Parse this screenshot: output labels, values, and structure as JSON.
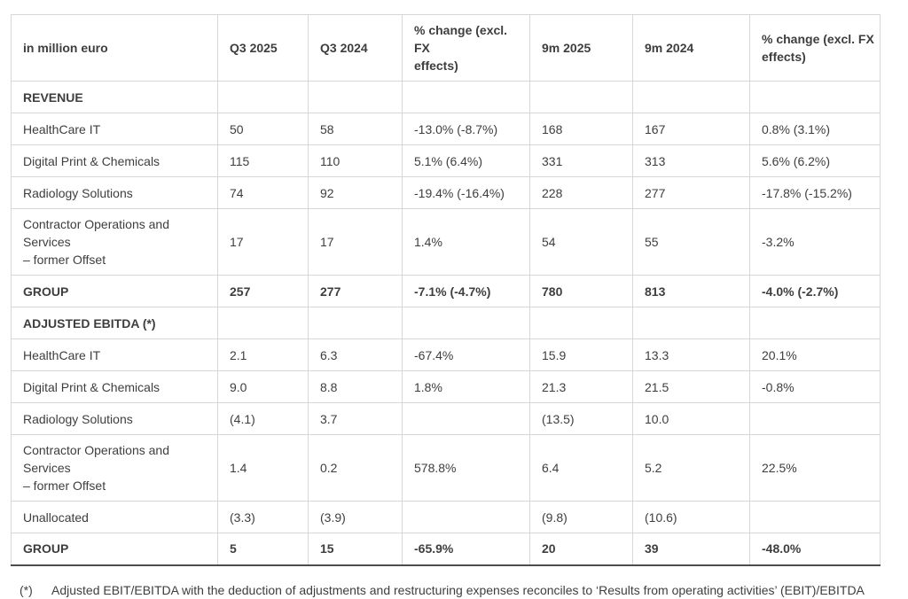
{
  "colors": {
    "text": "#3e3e3e",
    "grid_border": "#d7d7d7",
    "table_bottom_border": "#4c4c4c",
    "background": "#ffffff"
  },
  "table": {
    "columns": [
      "in million euro",
      "Q3 2025",
      "Q3 2024",
      "% change (excl. FX\neffects)",
      "9m 2025",
      "9m 2024",
      "% change (excl. FX\neffects)"
    ],
    "rows": [
      {
        "type": "section",
        "label": "REVENUE",
        "values": [
          "",
          "",
          "",
          "",
          "",
          ""
        ]
      },
      {
        "type": "data",
        "label": "HealthCare IT",
        "values": [
          "50",
          "58",
          "-13.0% (-8.7%)",
          "168",
          "167",
          "0.8% (3.1%)"
        ]
      },
      {
        "type": "data",
        "label": "Digital Print & Chemicals",
        "values": [
          "115",
          "110",
          "5.1% (6.4%)",
          "331",
          "313",
          "5.6% (6.2%)"
        ]
      },
      {
        "type": "data",
        "label": "Radiology Solutions",
        "values": [
          "74",
          "92",
          "-19.4% (-16.4%)",
          "228",
          "277",
          "-17.8% (-15.2%)"
        ]
      },
      {
        "type": "data",
        "label": "Contractor Operations and Services\n– former Offset",
        "values": [
          "17",
          "17",
          "1.4%",
          "54",
          "55",
          "-3.2%"
        ]
      },
      {
        "type": "total",
        "label": "GROUP",
        "values": [
          "257",
          "277",
          "-7.1% (-4.7%)",
          "780",
          "813",
          "-4.0% (-2.7%)"
        ]
      },
      {
        "type": "section",
        "label": "ADJUSTED EBITDA (*)",
        "values": [
          "",
          "",
          "",
          "",
          "",
          ""
        ]
      },
      {
        "type": "data",
        "label": "HealthCare IT",
        "values": [
          "2.1",
          "6.3",
          "-67.4%",
          "15.9",
          "13.3",
          "20.1%"
        ]
      },
      {
        "type": "data",
        "label": "Digital Print & Chemicals",
        "values": [
          "9.0",
          "8.8",
          "1.8%",
          "21.3",
          "21.5",
          "-0.8%"
        ]
      },
      {
        "type": "data",
        "label": "Radiology Solutions",
        "values": [
          "(4.1)",
          "3.7",
          "",
          "(13.5)",
          "10.0",
          ""
        ]
      },
      {
        "type": "data",
        "label": "Contractor Operations and Services\n– former Offset",
        "values": [
          "1.4",
          "0.2",
          "578.8%",
          "6.4",
          "5.2",
          "22.5%"
        ]
      },
      {
        "type": "data",
        "label": "Unallocated",
        "values": [
          "(3.3)",
          "(3.9)",
          "",
          "(9.8)",
          "(10.6)",
          ""
        ]
      },
      {
        "type": "total",
        "label": "GROUP",
        "values": [
          "5",
          "15",
          "-65.9%",
          "20",
          "39",
          "-48.0%"
        ]
      }
    ]
  },
  "footnote": {
    "marker": "(*)",
    "text": "Adjusted EBIT/EBITDA with the deduction of adjustments and restructuring expenses reconciles to ‘Results from operating activities’ (EBIT)/EBITDA"
  }
}
